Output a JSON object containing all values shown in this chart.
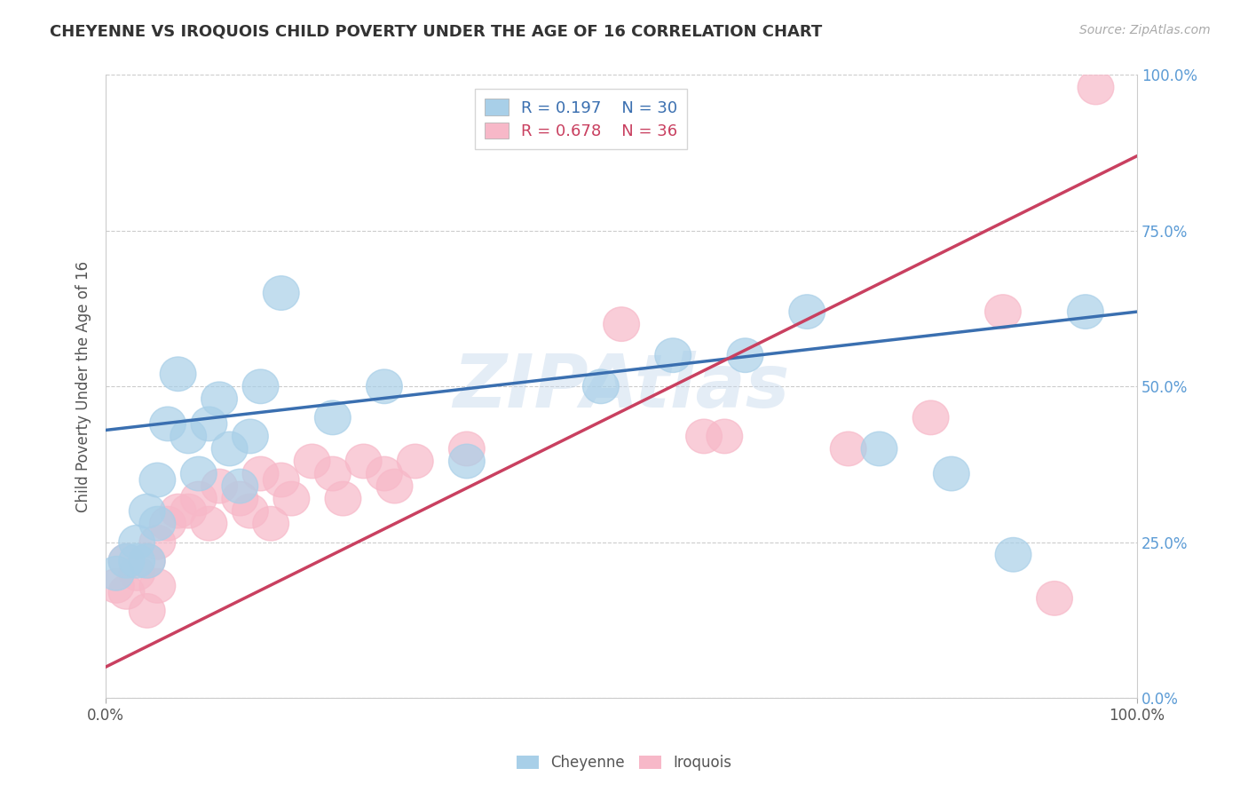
{
  "title": "CHEYENNE VS IROQUOIS CHILD POVERTY UNDER THE AGE OF 16 CORRELATION CHART",
  "source_text": "Source: ZipAtlas.com",
  "ylabel": "Child Poverty Under the Age of 16",
  "ytick_labels": [
    "0.0%",
    "25.0%",
    "50.0%",
    "75.0%",
    "100.0%"
  ],
  "ytick_values": [
    0.0,
    0.25,
    0.5,
    0.75,
    1.0
  ],
  "xlim": [
    0.0,
    1.0
  ],
  "ylim": [
    0.0,
    1.0
  ],
  "cheyenne_color": "#a8cfe8",
  "iroquois_color": "#f7b8c8",
  "cheyenne_line_color": "#3a6fb0",
  "iroquois_line_color": "#c94060",
  "cheyenne_R": 0.197,
  "cheyenne_N": 30,
  "iroquois_R": 0.678,
  "iroquois_N": 36,
  "background_color": "#ffffff",
  "watermark_text": "ZIPAtlas",
  "cheyenne_x": [
    0.01,
    0.02,
    0.03,
    0.03,
    0.04,
    0.04,
    0.05,
    0.05,
    0.06,
    0.07,
    0.08,
    0.09,
    0.1,
    0.11,
    0.12,
    0.13,
    0.14,
    0.15,
    0.17,
    0.22,
    0.27,
    0.35,
    0.48,
    0.55,
    0.62,
    0.68,
    0.75,
    0.82,
    0.88,
    0.95
  ],
  "cheyenne_y": [
    0.2,
    0.22,
    0.25,
    0.22,
    0.3,
    0.22,
    0.35,
    0.28,
    0.44,
    0.52,
    0.42,
    0.36,
    0.44,
    0.48,
    0.4,
    0.34,
    0.42,
    0.5,
    0.65,
    0.45,
    0.5,
    0.38,
    0.5,
    0.55,
    0.55,
    0.62,
    0.4,
    0.36,
    0.23,
    0.62
  ],
  "iroquois_x": [
    0.01,
    0.02,
    0.02,
    0.03,
    0.04,
    0.04,
    0.05,
    0.05,
    0.06,
    0.07,
    0.08,
    0.09,
    0.1,
    0.11,
    0.13,
    0.14,
    0.15,
    0.16,
    0.17,
    0.18,
    0.2,
    0.22,
    0.23,
    0.25,
    0.27,
    0.28,
    0.3,
    0.35,
    0.5,
    0.58,
    0.6,
    0.72,
    0.8,
    0.87,
    0.92,
    0.96
  ],
  "iroquois_y": [
    0.18,
    0.22,
    0.17,
    0.2,
    0.22,
    0.14,
    0.25,
    0.18,
    0.28,
    0.3,
    0.3,
    0.32,
    0.28,
    0.34,
    0.32,
    0.3,
    0.36,
    0.28,
    0.35,
    0.32,
    0.38,
    0.36,
    0.32,
    0.38,
    0.36,
    0.34,
    0.38,
    0.4,
    0.6,
    0.42,
    0.42,
    0.4,
    0.45,
    0.62,
    0.16,
    0.98
  ],
  "cheyenne_line_x0": 0.0,
  "cheyenne_line_y0": 0.43,
  "cheyenne_line_x1": 1.0,
  "cheyenne_line_y1": 0.62,
  "iroquois_line_x0": 0.0,
  "iroquois_line_y0": 0.05,
  "iroquois_line_x1": 1.0,
  "iroquois_line_y1": 0.87
}
